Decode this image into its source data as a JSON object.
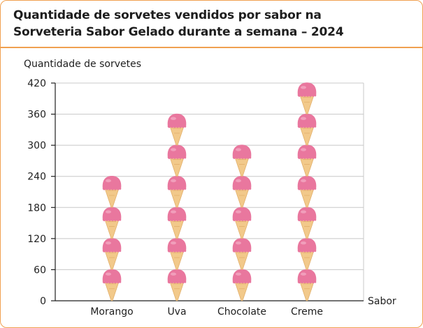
{
  "title_lines": [
    "Quantidade de sorvetes vendidos por sabor na",
    "Sorveteria Sabor Gelado durante a semana – 2024"
  ],
  "colors": {
    "border": "#f0a050",
    "scoop": "#e9779e",
    "cone": "#f2c98a",
    "grid": "#c8c8c8"
  },
  "icons": [
    "ice-cream-cone-icon"
  ],
  "chart_data": {
    "type": "bar",
    "title": "Quantidade de sorvetes vendidos por sabor na Sorveteria Sabor Gelado durante a semana – 2024",
    "xlabel": "Sabor",
    "ylabel": "Quantidade de sorvetes",
    "categories": [
      "Morango",
      "Uva",
      "Chocolate",
      "Creme"
    ],
    "values": [
      240,
      360,
      300,
      420
    ],
    "icon_value": 60,
    "icon_counts": [
      4,
      6,
      5,
      7
    ],
    "yticks": [
      0,
      60,
      120,
      180,
      240,
      300,
      360,
      420
    ],
    "ylim": [
      0,
      420
    ],
    "grid": true
  }
}
